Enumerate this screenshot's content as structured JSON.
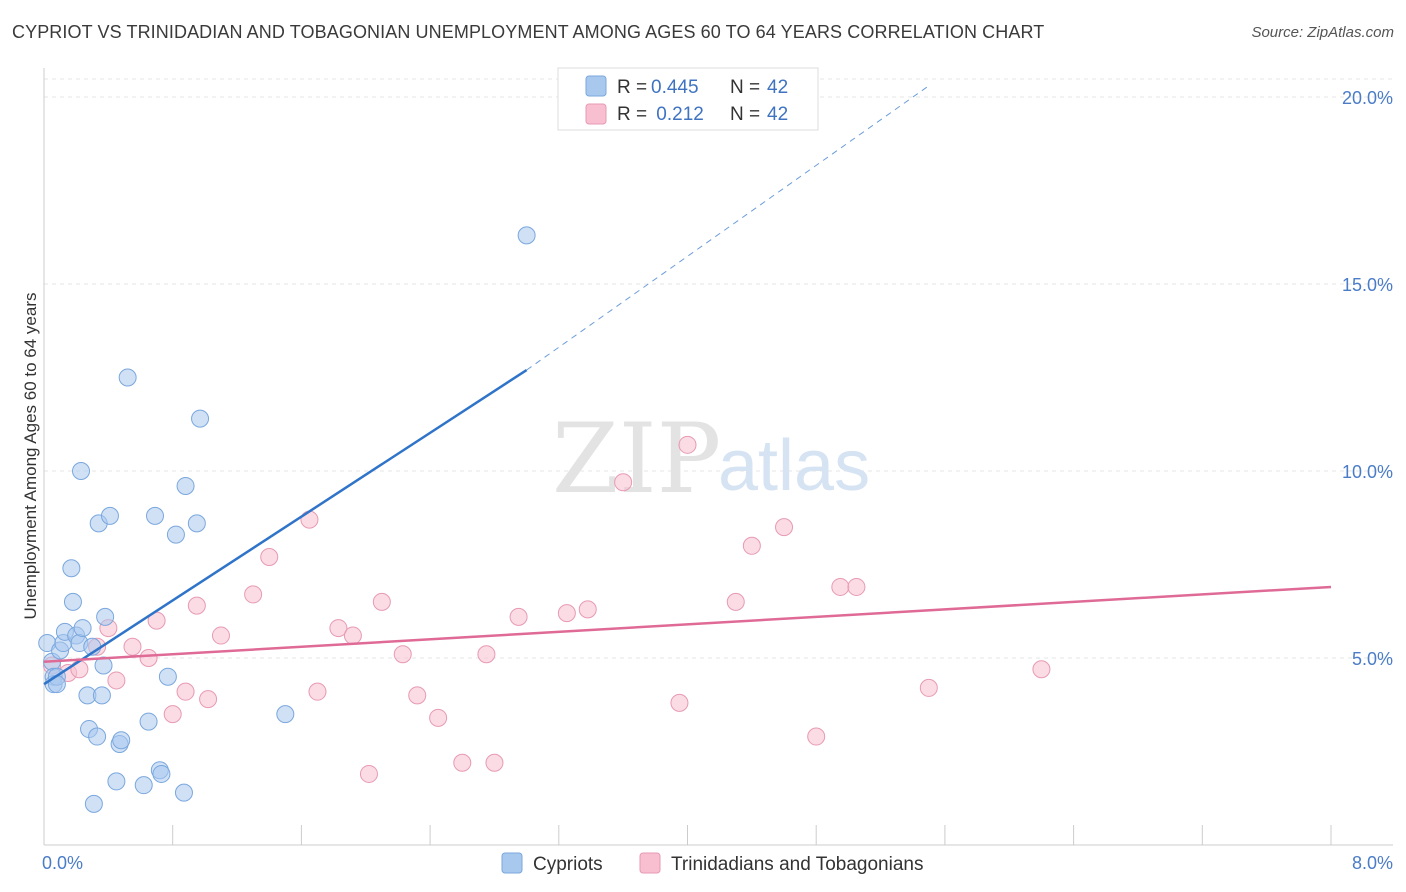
{
  "title": "CYPRIOT VS TRINIDADIAN AND TOBAGONIAN UNEMPLOYMENT AMONG AGES 60 TO 64 YEARS CORRELATION CHART",
  "source": "Source: ZipAtlas.com",
  "watermark": {
    "zip": "ZIP",
    "atlas": "atlas"
  },
  "colors": {
    "cypriots": "#a9c8ee",
    "cypriots_stroke": "#7aa7dd",
    "cypriots_line": "#2f74c9",
    "trinidad": "#f7bfd0",
    "trinidad_stroke": "#e79ab3",
    "trinidad_line": "#e06a96",
    "tick": "#4a7cc7"
  },
  "legend": {
    "rows": [
      {
        "r_label": "R = ",
        "r_value": "0.445",
        "n_label": "N = ",
        "n_value": "42"
      },
      {
        "r_label": "R = ",
        "r_value": " 0.212",
        "n_label": "N = ",
        "n_value": "42"
      }
    ]
  },
  "bottom_legend": [
    "Cypriots",
    "Trinidadians and Tobagonians"
  ],
  "chart_data": {
    "type": "scatter",
    "title": "CYPRIOT VS TRINIDADIAN AND TOBAGONIAN UNEMPLOYMENT AMONG AGES 60 TO 64 YEARS CORRELATION CHART",
    "ylabel": "Unemployment Among Ages 60 to 64 years",
    "xlabel": "",
    "xlim": [
      0,
      8
    ],
    "ylim": [
      0,
      20.5
    ],
    "x_tick_labels": [
      "0.0%",
      "8.0%"
    ],
    "y_ticks": [
      5,
      10,
      15,
      20
    ],
    "y_tick_labels": [
      "5.0%",
      "10.0%",
      "15.0%",
      "20.0%"
    ],
    "grid": true,
    "legend_position": "top-center",
    "series": [
      {
        "name": "Cypriots",
        "R": 0.445,
        "N": 42,
        "trend": {
          "x0": 0.0,
          "y0": 4.3,
          "x1": 3.0,
          "y1": 12.7,
          "dashed_to_x": 5.5,
          "dashed_to_y": 20.3
        },
        "points": [
          [
            0.02,
            5.4
          ],
          [
            0.05,
            4.9
          ],
          [
            0.06,
            4.5
          ],
          [
            0.06,
            4.3
          ],
          [
            0.08,
            4.5
          ],
          [
            0.1,
            5.2
          ],
          [
            0.12,
            5.4
          ],
          [
            0.13,
            5.7
          ],
          [
            0.17,
            7.4
          ],
          [
            0.18,
            6.5
          ],
          [
            0.2,
            5.6
          ],
          [
            0.22,
            5.4
          ],
          [
            0.24,
            5.8
          ],
          [
            0.23,
            10.0
          ],
          [
            0.27,
            4.0
          ],
          [
            0.3,
            5.3
          ],
          [
            0.28,
            3.1
          ],
          [
            0.33,
            2.9
          ],
          [
            0.31,
            1.1
          ],
          [
            0.34,
            8.6
          ],
          [
            0.36,
            4.0
          ],
          [
            0.37,
            4.8
          ],
          [
            0.38,
            6.1
          ],
          [
            0.41,
            8.8
          ],
          [
            0.45,
            1.7
          ],
          [
            0.47,
            2.7
          ],
          [
            0.48,
            2.8
          ],
          [
            0.52,
            12.5
          ],
          [
            0.62,
            1.6
          ],
          [
            0.65,
            3.3
          ],
          [
            0.69,
            8.8
          ],
          [
            0.72,
            2.0
          ],
          [
            0.73,
            1.9
          ],
          [
            0.77,
            4.5
          ],
          [
            0.82,
            8.3
          ],
          [
            0.87,
            1.4
          ],
          [
            0.88,
            9.6
          ],
          [
            0.95,
            8.6
          ],
          [
            0.97,
            11.4
          ],
          [
            1.5,
            3.5
          ],
          [
            3.0,
            16.3
          ],
          [
            0.08,
            4.3
          ]
        ]
      },
      {
        "name": "Trinidadians and Tobagonians",
        "R": 0.212,
        "N": 42,
        "trend": {
          "x0": 0.0,
          "y0": 4.9,
          "x1": 8.0,
          "y1": 6.9
        },
        "points": [
          [
            0.05,
            4.8
          ],
          [
            0.15,
            4.6
          ],
          [
            0.22,
            4.7
          ],
          [
            0.33,
            5.3
          ],
          [
            0.4,
            5.8
          ],
          [
            0.45,
            4.4
          ],
          [
            0.55,
            5.3
          ],
          [
            0.65,
            5.0
          ],
          [
            0.7,
            6.0
          ],
          [
            0.8,
            3.5
          ],
          [
            0.88,
            4.1
          ],
          [
            0.95,
            6.4
          ],
          [
            1.02,
            3.9
          ],
          [
            1.1,
            5.6
          ],
          [
            1.3,
            6.7
          ],
          [
            1.4,
            7.7
          ],
          [
            1.65,
            8.7
          ],
          [
            1.7,
            4.1
          ],
          [
            1.83,
            5.8
          ],
          [
            1.92,
            5.6
          ],
          [
            2.02,
            1.9
          ],
          [
            2.1,
            6.5
          ],
          [
            2.23,
            5.1
          ],
          [
            2.32,
            4.0
          ],
          [
            2.45,
            3.4
          ],
          [
            2.6,
            2.2
          ],
          [
            2.75,
            5.1
          ],
          [
            2.8,
            2.2
          ],
          [
            2.95,
            6.1
          ],
          [
            3.25,
            6.2
          ],
          [
            3.38,
            6.3
          ],
          [
            3.6,
            9.7
          ],
          [
            4.0,
            10.7
          ],
          [
            3.95,
            3.8
          ],
          [
            4.3,
            6.5
          ],
          [
            4.4,
            8.0
          ],
          [
            4.6,
            8.5
          ],
          [
            4.8,
            2.9
          ],
          [
            4.95,
            6.9
          ],
          [
            5.05,
            6.9
          ],
          [
            5.5,
            4.2
          ],
          [
            6.2,
            4.7
          ]
        ]
      }
    ]
  }
}
